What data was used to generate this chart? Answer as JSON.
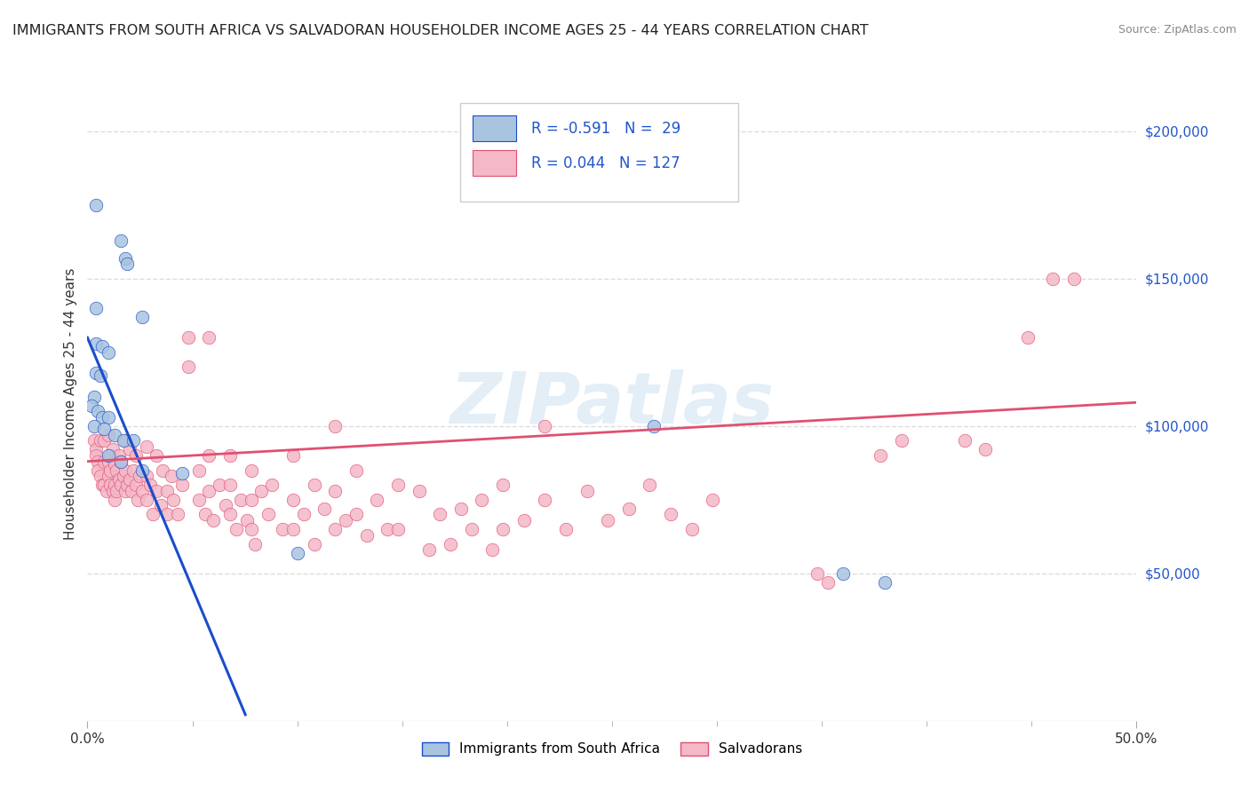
{
  "title": "IMMIGRANTS FROM SOUTH AFRICA VS SALVADORAN HOUSEHOLDER INCOME AGES 25 - 44 YEARS CORRELATION CHART",
  "source": "Source: ZipAtlas.com",
  "ylabel": "Householder Income Ages 25 - 44 years",
  "yright_ticks": [
    "$200,000",
    "$150,000",
    "$100,000",
    "$50,000"
  ],
  "yright_vals": [
    200000,
    150000,
    100000,
    50000
  ],
  "ylim": [
    0,
    215000
  ],
  "xlim": [
    0.0,
    0.5
  ],
  "xtick_minor": [
    0.05,
    0.1,
    0.15,
    0.2,
    0.25,
    0.3,
    0.35,
    0.4,
    0.45
  ],
  "xtick_major_labels": {
    "0.0": "0.0%",
    "0.5": "50.0%"
  },
  "R_blue": -0.591,
  "N_blue": 29,
  "R_pink": 0.044,
  "N_pink": 127,
  "legend_label_blue": "Immigrants from South Africa",
  "legend_label_pink": "Salvadorans",
  "color_blue": "#a8c4e0",
  "color_pink": "#f4b8c8",
  "color_line_blue": "#1a4dcc",
  "color_line_pink": "#e05070",
  "color_legend_text": "#2255cc",
  "watermark": "ZIPatlas",
  "background_color": "#ffffff",
  "grid_color": "#dddddd",
  "blue_intercept": 130000,
  "blue_slope": -1700000,
  "pink_intercept": 88000,
  "pink_slope": 40000,
  "blue_points": [
    [
      0.004,
      175000
    ],
    [
      0.016,
      163000
    ],
    [
      0.018,
      157000
    ],
    [
      0.019,
      155000
    ],
    [
      0.004,
      140000
    ],
    [
      0.026,
      137000
    ],
    [
      0.004,
      128000
    ],
    [
      0.007,
      127000
    ],
    [
      0.01,
      125000
    ],
    [
      0.004,
      118000
    ],
    [
      0.006,
      117000
    ],
    [
      0.003,
      110000
    ],
    [
      0.002,
      107000
    ],
    [
      0.005,
      105000
    ],
    [
      0.007,
      103000
    ],
    [
      0.01,
      103000
    ],
    [
      0.003,
      100000
    ],
    [
      0.008,
      99000
    ],
    [
      0.013,
      97000
    ],
    [
      0.017,
      95000
    ],
    [
      0.022,
      95000
    ],
    [
      0.01,
      90000
    ],
    [
      0.016,
      88000
    ],
    [
      0.026,
      85000
    ],
    [
      0.045,
      84000
    ],
    [
      0.27,
      100000
    ],
    [
      0.36,
      50000
    ],
    [
      0.38,
      47000
    ],
    [
      0.1,
      57000
    ]
  ],
  "pink_points": [
    [
      0.003,
      95000
    ],
    [
      0.004,
      92000
    ],
    [
      0.004,
      90000
    ],
    [
      0.005,
      88000
    ],
    [
      0.005,
      85000
    ],
    [
      0.006,
      95000
    ],
    [
      0.006,
      83000
    ],
    [
      0.007,
      80000
    ],
    [
      0.008,
      95000
    ],
    [
      0.008,
      88000
    ],
    [
      0.008,
      80000
    ],
    [
      0.009,
      78000
    ],
    [
      0.01,
      97000
    ],
    [
      0.01,
      88000
    ],
    [
      0.01,
      83000
    ],
    [
      0.011,
      90000
    ],
    [
      0.011,
      85000
    ],
    [
      0.011,
      80000
    ],
    [
      0.012,
      92000
    ],
    [
      0.012,
      78000
    ],
    [
      0.013,
      87000
    ],
    [
      0.013,
      80000
    ],
    [
      0.013,
      75000
    ],
    [
      0.014,
      85000
    ],
    [
      0.014,
      78000
    ],
    [
      0.015,
      90000
    ],
    [
      0.015,
      82000
    ],
    [
      0.016,
      88000
    ],
    [
      0.016,
      80000
    ],
    [
      0.017,
      83000
    ],
    [
      0.018,
      95000
    ],
    [
      0.018,
      85000
    ],
    [
      0.018,
      78000
    ],
    [
      0.019,
      80000
    ],
    [
      0.02,
      92000
    ],
    [
      0.02,
      82000
    ],
    [
      0.021,
      78000
    ],
    [
      0.022,
      85000
    ],
    [
      0.023,
      90000
    ],
    [
      0.023,
      80000
    ],
    [
      0.024,
      75000
    ],
    [
      0.025,
      83000
    ],
    [
      0.026,
      78000
    ],
    [
      0.028,
      93000
    ],
    [
      0.028,
      83000
    ],
    [
      0.028,
      75000
    ],
    [
      0.03,
      80000
    ],
    [
      0.031,
      70000
    ],
    [
      0.033,
      90000
    ],
    [
      0.033,
      78000
    ],
    [
      0.035,
      73000
    ],
    [
      0.036,
      85000
    ],
    [
      0.038,
      78000
    ],
    [
      0.038,
      70000
    ],
    [
      0.04,
      83000
    ],
    [
      0.041,
      75000
    ],
    [
      0.043,
      70000
    ],
    [
      0.045,
      80000
    ],
    [
      0.048,
      130000
    ],
    [
      0.048,
      120000
    ],
    [
      0.053,
      85000
    ],
    [
      0.053,
      75000
    ],
    [
      0.056,
      70000
    ],
    [
      0.058,
      130000
    ],
    [
      0.058,
      90000
    ],
    [
      0.058,
      78000
    ],
    [
      0.06,
      68000
    ],
    [
      0.063,
      80000
    ],
    [
      0.066,
      73000
    ],
    [
      0.068,
      90000
    ],
    [
      0.068,
      80000
    ],
    [
      0.068,
      70000
    ],
    [
      0.071,
      65000
    ],
    [
      0.073,
      75000
    ],
    [
      0.076,
      68000
    ],
    [
      0.078,
      85000
    ],
    [
      0.078,
      75000
    ],
    [
      0.078,
      65000
    ],
    [
      0.08,
      60000
    ],
    [
      0.083,
      78000
    ],
    [
      0.086,
      70000
    ],
    [
      0.088,
      80000
    ],
    [
      0.093,
      65000
    ],
    [
      0.098,
      90000
    ],
    [
      0.098,
      75000
    ],
    [
      0.098,
      65000
    ],
    [
      0.103,
      70000
    ],
    [
      0.108,
      80000
    ],
    [
      0.108,
      60000
    ],
    [
      0.113,
      72000
    ],
    [
      0.118,
      100000
    ],
    [
      0.118,
      78000
    ],
    [
      0.118,
      65000
    ],
    [
      0.123,
      68000
    ],
    [
      0.128,
      85000
    ],
    [
      0.128,
      70000
    ],
    [
      0.133,
      63000
    ],
    [
      0.138,
      75000
    ],
    [
      0.143,
      65000
    ],
    [
      0.148,
      80000
    ],
    [
      0.148,
      65000
    ],
    [
      0.158,
      78000
    ],
    [
      0.163,
      58000
    ],
    [
      0.168,
      70000
    ],
    [
      0.173,
      60000
    ],
    [
      0.178,
      72000
    ],
    [
      0.183,
      65000
    ],
    [
      0.188,
      75000
    ],
    [
      0.193,
      58000
    ],
    [
      0.198,
      80000
    ],
    [
      0.198,
      65000
    ],
    [
      0.208,
      68000
    ],
    [
      0.218,
      100000
    ],
    [
      0.218,
      75000
    ],
    [
      0.228,
      65000
    ],
    [
      0.238,
      78000
    ],
    [
      0.248,
      68000
    ],
    [
      0.258,
      72000
    ],
    [
      0.268,
      80000
    ],
    [
      0.278,
      70000
    ],
    [
      0.288,
      65000
    ],
    [
      0.298,
      75000
    ],
    [
      0.348,
      50000
    ],
    [
      0.353,
      47000
    ],
    [
      0.378,
      90000
    ],
    [
      0.388,
      95000
    ],
    [
      0.418,
      95000
    ],
    [
      0.428,
      92000
    ],
    [
      0.448,
      130000
    ],
    [
      0.46,
      150000
    ],
    [
      0.47,
      150000
    ]
  ]
}
